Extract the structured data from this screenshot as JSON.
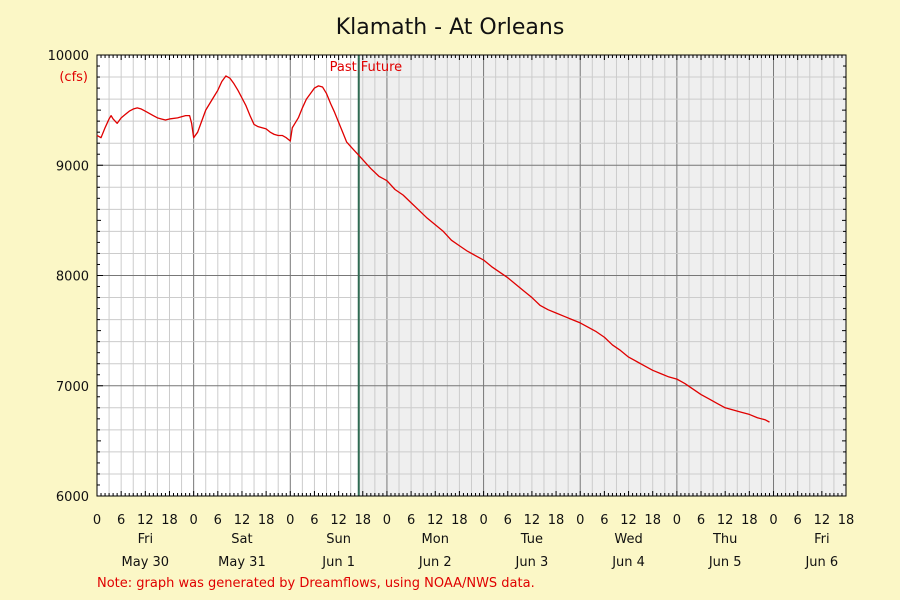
{
  "chart_data": {
    "type": "line",
    "title": "Klamath - At Orleans",
    "ylabel": "(cfs)",
    "ylim": [
      6000,
      10000
    ],
    "yticks": [
      6000,
      7000,
      8000,
      9000,
      10000
    ],
    "x_range_hours": [
      0,
      186
    ],
    "past_label": "Past",
    "future_label": "Future",
    "now_hour": 65,
    "hour_tick_labels": [
      "0",
      "6",
      "12",
      "18",
      "0",
      "6",
      "12",
      "18",
      "0",
      "6",
      "12",
      "18",
      "0",
      "6",
      "12",
      "18",
      "0",
      "6",
      "12",
      "18",
      "0",
      "6",
      "12",
      "18",
      "0",
      "6",
      "12",
      "18",
      "0",
      "6",
      "12",
      "18"
    ],
    "days": [
      {
        "day": "Fri",
        "date": "May 30"
      },
      {
        "day": "Sat",
        "date": "May 31"
      },
      {
        "day": "Sun",
        "date": "Jun 1"
      },
      {
        "day": "Mon",
        "date": "Jun 2"
      },
      {
        "day": "Tue",
        "date": "Jun 3"
      },
      {
        "day": "Wed",
        "date": "Jun 4"
      },
      {
        "day": "Thu",
        "date": "Jun 5"
      },
      {
        "day": "Fri",
        "date": "Jun 6"
      }
    ],
    "series": [
      {
        "color": "#e00000",
        "points": [
          [
            0,
            9270
          ],
          [
            1,
            9250
          ],
          [
            2,
            9340
          ],
          [
            3,
            9420
          ],
          [
            3.5,
            9450
          ],
          [
            4,
            9420
          ],
          [
            5,
            9380
          ],
          [
            6,
            9430
          ],
          [
            7,
            9460
          ],
          [
            8,
            9490
          ],
          [
            9,
            9510
          ],
          [
            10,
            9520
          ],
          [
            11,
            9510
          ],
          [
            12,
            9490
          ],
          [
            13,
            9470
          ],
          [
            14,
            9450
          ],
          [
            15,
            9430
          ],
          [
            16,
            9420
          ],
          [
            17,
            9410
          ],
          [
            18,
            9420
          ],
          [
            20,
            9430
          ],
          [
            21,
            9440
          ],
          [
            22,
            9450
          ],
          [
            23,
            9450
          ],
          [
            23.5,
            9380
          ],
          [
            24,
            9250
          ],
          [
            25,
            9300
          ],
          [
            26,
            9400
          ],
          [
            27,
            9500
          ],
          [
            28,
            9560
          ],
          [
            29,
            9620
          ],
          [
            30,
            9680
          ],
          [
            31,
            9760
          ],
          [
            32,
            9810
          ],
          [
            33,
            9790
          ],
          [
            34,
            9740
          ],
          [
            35,
            9680
          ],
          [
            36,
            9610
          ],
          [
            37,
            9540
          ],
          [
            38,
            9450
          ],
          [
            39,
            9370
          ],
          [
            40,
            9350
          ],
          [
            41,
            9340
          ],
          [
            42,
            9330
          ],
          [
            43,
            9300
          ],
          [
            44,
            9280
          ],
          [
            45,
            9270
          ],
          [
            46,
            9270
          ],
          [
            47,
            9250
          ],
          [
            48,
            9220
          ],
          [
            48.5,
            9340
          ],
          [
            49,
            9370
          ],
          [
            50,
            9430
          ],
          [
            51,
            9520
          ],
          [
            52,
            9600
          ],
          [
            53,
            9650
          ],
          [
            54,
            9700
          ],
          [
            55,
            9720
          ],
          [
            56,
            9710
          ],
          [
            57,
            9650
          ],
          [
            58,
            9560
          ],
          [
            59,
            9480
          ],
          [
            60,
            9390
          ],
          [
            61,
            9300
          ],
          [
            62,
            9210
          ],
          [
            63,
            9170
          ],
          [
            64,
            9130
          ],
          [
            65,
            9090
          ],
          [
            66,
            9050
          ],
          [
            67,
            9010
          ],
          [
            68,
            8970
          ],
          [
            70,
            8900
          ],
          [
            72,
            8860
          ],
          [
            74,
            8780
          ],
          [
            76,
            8730
          ],
          [
            78,
            8660
          ],
          [
            80,
            8590
          ],
          [
            82,
            8520
          ],
          [
            84,
            8460
          ],
          [
            86,
            8400
          ],
          [
            88,
            8320
          ],
          [
            90,
            8270
          ],
          [
            92,
            8220
          ],
          [
            94,
            8180
          ],
          [
            96,
            8140
          ],
          [
            98,
            8080
          ],
          [
            100,
            8030
          ],
          [
            102,
            7980
          ],
          [
            104,
            7920
          ],
          [
            106,
            7860
          ],
          [
            108,
            7800
          ],
          [
            110,
            7730
          ],
          [
            112,
            7690
          ],
          [
            114,
            7660
          ],
          [
            116,
            7630
          ],
          [
            118,
            7600
          ],
          [
            120,
            7570
          ],
          [
            122,
            7530
          ],
          [
            124,
            7490
          ],
          [
            126,
            7440
          ],
          [
            128,
            7370
          ],
          [
            130,
            7320
          ],
          [
            132,
            7260
          ],
          [
            134,
            7220
          ],
          [
            136,
            7180
          ],
          [
            138,
            7140
          ],
          [
            140,
            7110
          ],
          [
            142,
            7080
          ],
          [
            144,
            7060
          ],
          [
            146,
            7020
          ],
          [
            148,
            6970
          ],
          [
            150,
            6920
          ],
          [
            152,
            6880
          ],
          [
            154,
            6840
          ],
          [
            156,
            6800
          ],
          [
            158,
            6780
          ],
          [
            160,
            6760
          ],
          [
            162,
            6740
          ],
          [
            164,
            6710
          ],
          [
            166,
            6690
          ],
          [
            167,
            6670
          ]
        ]
      }
    ]
  },
  "note": "Note: graph was generated by Dreamflows, using NOAA/NWS data.",
  "colors": {
    "background": "#fbf7c6",
    "future_fill": "#efefef",
    "now_line": "#2f6a52",
    "line": "#e00000",
    "grid_major": "#777777",
    "grid_minor": "#cccccc"
  }
}
